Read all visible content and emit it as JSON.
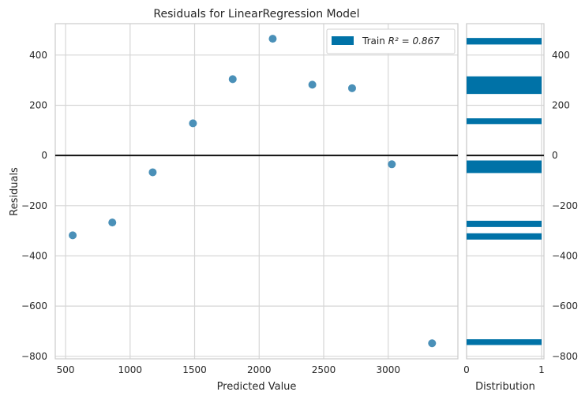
{
  "chart_data": {
    "type": "scatter",
    "title": "Residuals for LinearRegression Model",
    "xlabel": "Predicted Value",
    "ylabel": "Residuals",
    "xlim": [
      420,
      3540
    ],
    "ylim": [
      -810,
      525
    ],
    "xticks": [
      500,
      1000,
      1500,
      2000,
      2500,
      3000
    ],
    "yticks": [
      -800,
      -600,
      -400,
      -200,
      0,
      200,
      400
    ],
    "grid": true,
    "colors": {
      "points": "#4a90b8",
      "hist": "#0072a7",
      "zero_line": "#111111",
      "grid": "#d6d6d6",
      "frame": "#cccccc"
    },
    "legend": {
      "label_prefix": "Train ",
      "label_math": "R² = 0.867",
      "placement": "top-right"
    },
    "series": [
      {
        "name": "Train",
        "points": [
          {
            "x": 555,
            "y": -318
          },
          {
            "x": 862,
            "y": -267
          },
          {
            "x": 1175,
            "y": -67
          },
          {
            "x": 1487,
            "y": 128
          },
          {
            "x": 1795,
            "y": 304
          },
          {
            "x": 2105,
            "y": 465
          },
          {
            "x": 2412,
            "y": 282
          },
          {
            "x": 2720,
            "y": 268
          },
          {
            "x": 3028,
            "y": -35
          },
          {
            "x": 3340,
            "y": -748
          }
        ]
      }
    ],
    "distribution": {
      "xlabel": "Distribution",
      "xticks": [
        0,
        1
      ],
      "xlim": [
        0,
        1
      ],
      "bars": [
        {
          "y0": 442,
          "y1": 468,
          "value": 1
        },
        {
          "y0": 245,
          "y1": 315,
          "value": 1
        },
        {
          "y0": 125,
          "y1": 148,
          "value": 1
        },
        {
          "y0": -70,
          "y1": -20,
          "value": 1
        },
        {
          "y0": -285,
          "y1": -260,
          "value": 1
        },
        {
          "y0": -335,
          "y1": -310,
          "value": 1
        },
        {
          "y0": -755,
          "y1": -732,
          "value": 1
        }
      ]
    }
  }
}
